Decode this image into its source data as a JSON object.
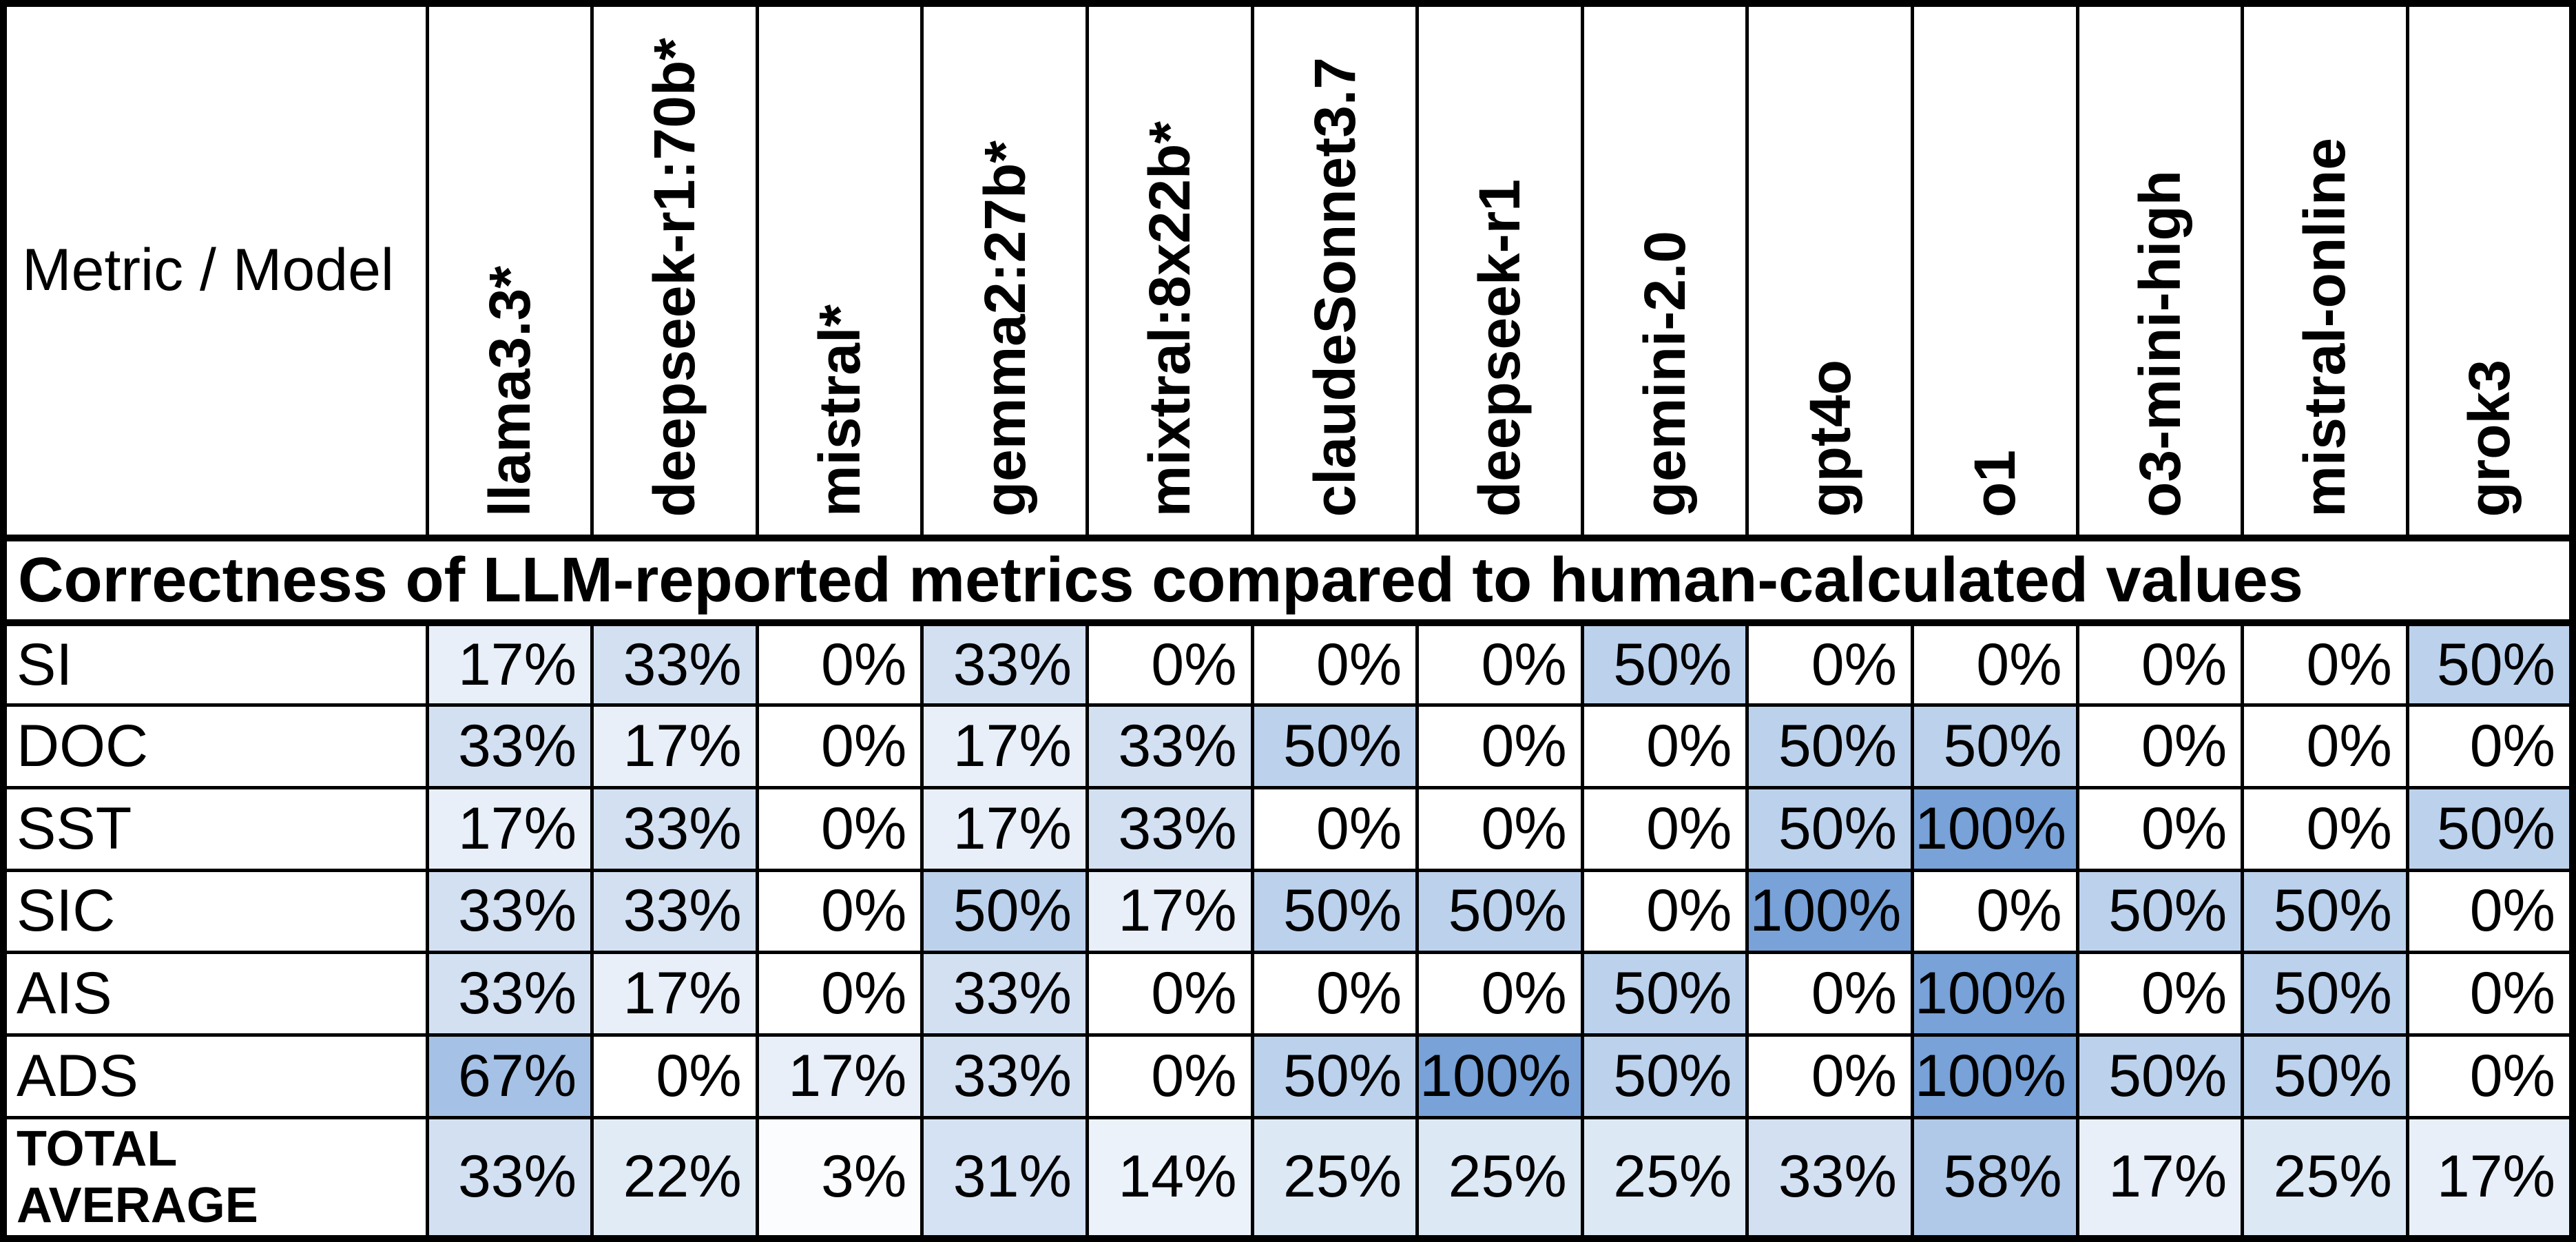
{
  "style": {
    "background_color": "#ffffff",
    "border_color": "#000000",
    "text_color": "#000000",
    "heat_min_color": "#ffffff",
    "heat_max_color": "#78a2d8"
  },
  "chart_data": {
    "type": "heatmap",
    "title": "Correctness of LLM-reported metrics compared to human-calculated values",
    "corner_label": "Metric / Model",
    "columns": [
      "llama3.3*",
      "deepseek-r1:70b*",
      "mistral*",
      "gemma2:27b*",
      "mixtral:8x22b*",
      "claudeSonnet3.7",
      "deepseek-r1",
      "gemini-2.0",
      "gpt4o",
      "o1",
      "o3-mini-high",
      "mistral-online",
      "grok3"
    ],
    "rows": [
      "SI",
      "DOC",
      "SST",
      "SIC",
      "AIS",
      "ADS",
      "TOTAL AVERAGE"
    ],
    "values_pct": [
      [
        17,
        33,
        0,
        33,
        0,
        0,
        0,
        50,
        0,
        0,
        0,
        0,
        50
      ],
      [
        33,
        17,
        0,
        17,
        33,
        50,
        0,
        0,
        50,
        50,
        0,
        0,
        0
      ],
      [
        17,
        33,
        0,
        17,
        33,
        0,
        0,
        0,
        50,
        100,
        0,
        0,
        50
      ],
      [
        33,
        33,
        0,
        50,
        17,
        50,
        50,
        0,
        100,
        0,
        50,
        50,
        0
      ],
      [
        33,
        17,
        0,
        33,
        0,
        0,
        0,
        50,
        0,
        100,
        0,
        50,
        0
      ],
      [
        67,
        0,
        17,
        33,
        0,
        50,
        100,
        50,
        0,
        100,
        50,
        50,
        0
      ],
      [
        33,
        22,
        3,
        31,
        14,
        25,
        25,
        25,
        33,
        58,
        17,
        25,
        17
      ]
    ],
    "value_format": "percent",
    "color_scale": {
      "min_value": 0,
      "max_value": 100,
      "min_color": "#ffffff",
      "max_color": "#78a2d8"
    },
    "layout": {
      "header_rotation": "bottom-to-top",
      "legend": "none",
      "grid": "black-borders"
    }
  }
}
